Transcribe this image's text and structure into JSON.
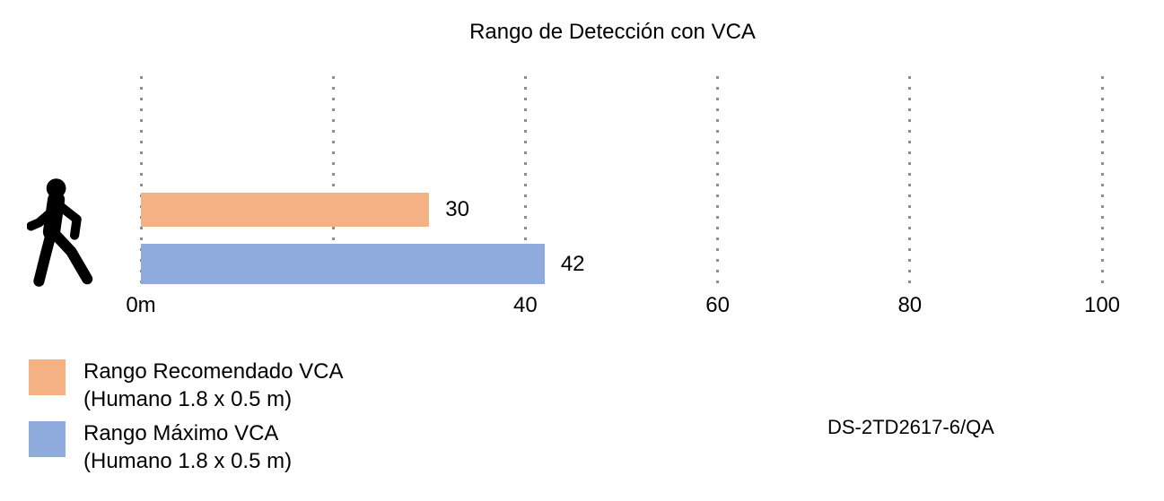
{
  "chart_data": {
    "type": "bar",
    "orientation": "horizontal",
    "title": "Rango de Detección con VCA",
    "xlim": [
      0,
      100
    ],
    "x_ticks": [
      0,
      20,
      40,
      60,
      80,
      100
    ],
    "x_tick_labels": [
      "0m",
      "",
      "40",
      "60",
      "80",
      "100"
    ],
    "grid": "dotted-vertical-gridlines",
    "unit": "m",
    "series": [
      {
        "name": "Rango Recomendado VCA (Humano 1.8 x 0.5 m)",
        "value": 30,
        "color": "#F4B183"
      },
      {
        "name": "Rango Máximo VCA (Humano 1.8 x 0.5 m)",
        "value": 42,
        "color": "#8FAADC"
      }
    ]
  },
  "legend": {
    "items": [
      {
        "label": "Rango Recomendado VCA",
        "sublabel": "(Humano 1.8 x 0.5 m)",
        "color": "#F4B183"
      },
      {
        "label": "Rango Máximo VCA",
        "sublabel": "(Humano 1.8 x 0.5 m)",
        "color": "#8FAADC"
      }
    ]
  },
  "model_label": "DS-2TD2617-6/QA",
  "icons": {
    "person_walking": "black walking-person silhouette"
  },
  "colors": {
    "background": "#FFFFFF",
    "bar_recommended": "#F4B183",
    "bar_maximum": "#8FAADC",
    "gridline": "#8E8E8E",
    "text": "#000000"
  }
}
